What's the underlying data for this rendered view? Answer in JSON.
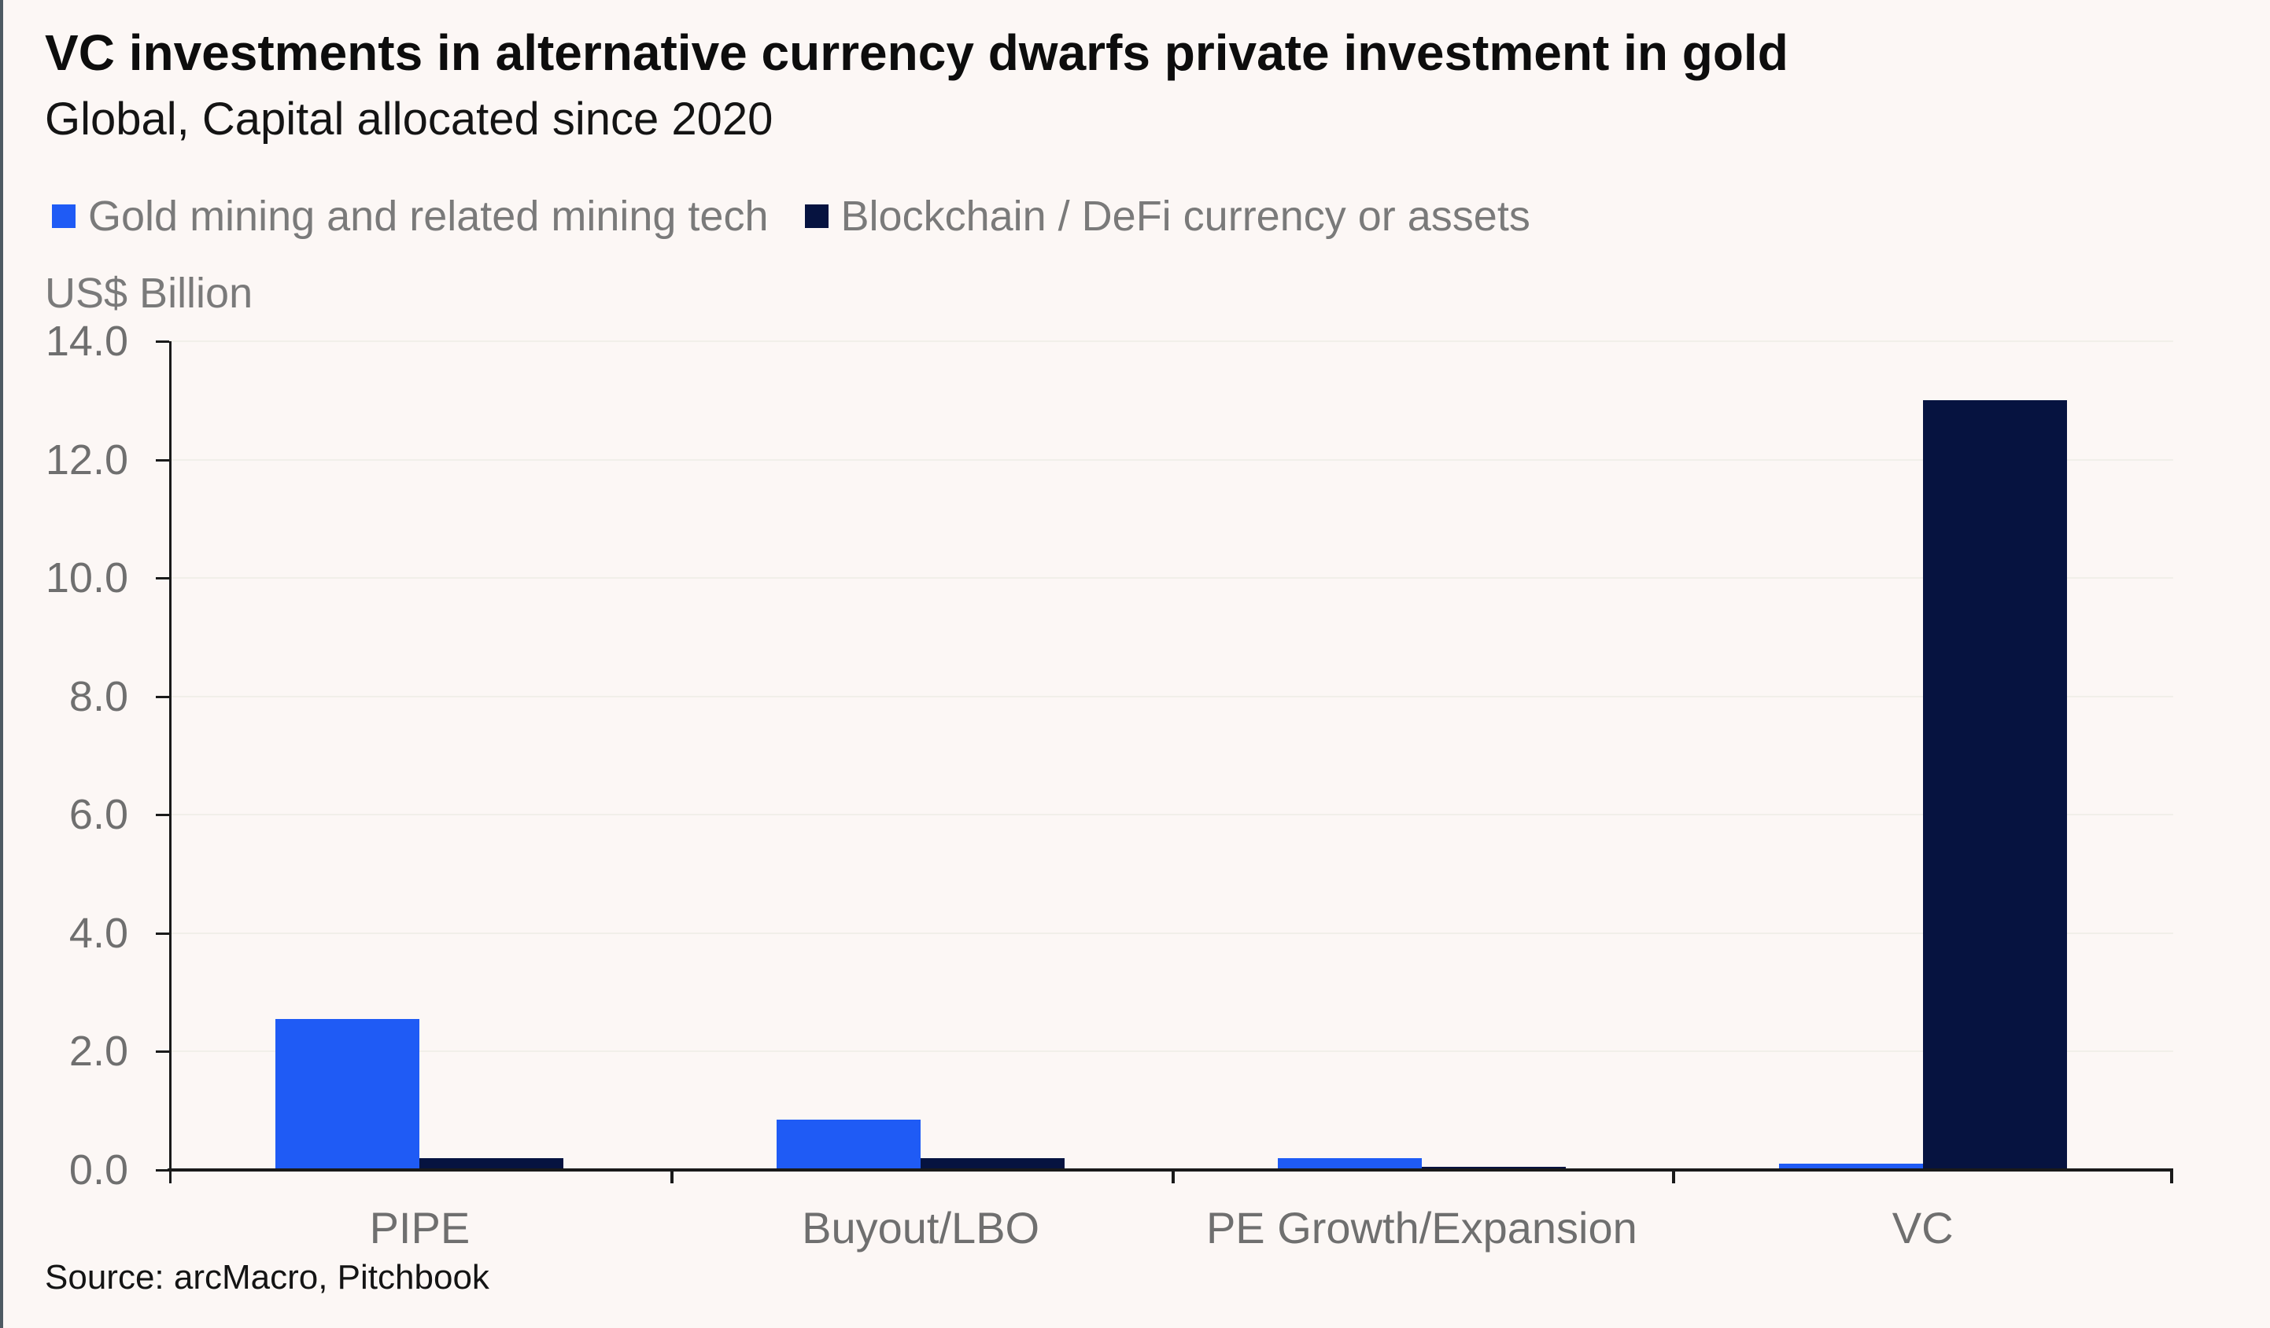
{
  "header": {
    "title": "VC investments in alternative currency dwarfs private investment in gold",
    "subtitle": "Global, Capital allocated since 2020"
  },
  "legend": {
    "items": [
      {
        "label": "Gold mining and related mining tech",
        "color": "#1F5BF5",
        "marker": "square"
      },
      {
        "label": "Blockchain / DeFi currency or assets",
        "color": "#061340",
        "marker": "square"
      }
    ]
  },
  "chart_data": {
    "type": "bar",
    "title": "VC investments in alternative currency dwarfs private investment in gold",
    "subtitle": "Global, Capital allocated since 2020",
    "categories": [
      "PIPE",
      "Buyout/LBO",
      "PE Growth/Expansion",
      "VC"
    ],
    "series": [
      {
        "name": "Gold mining and related mining tech",
        "color": "#1F5BF5",
        "values": [
          2.55,
          0.85,
          0.2,
          0.1
        ]
      },
      {
        "name": "Blockchain / DeFi currency or assets",
        "color": "#061340",
        "values": [
          0.2,
          0.2,
          0.05,
          13.0
        ]
      }
    ],
    "xlabel": "",
    "ylabel": "US$ Billion",
    "ylim": [
      0,
      14
    ],
    "ytick_step": 2,
    "ytick_labels": [
      "0.0",
      "2.0",
      "4.0",
      "6.0",
      "8.0",
      "10.0",
      "12.0",
      "14.0"
    ],
    "grid": "horizontal-light",
    "legend_position": "top-left"
  },
  "footer": {
    "source": "Source: arcMacro, Pitchbook"
  },
  "colors": {
    "background": "#FCF7F5",
    "series_gold_mining": "#1F5BF5",
    "series_blockchain": "#061340",
    "axis": "#1A1A1A",
    "muted_text": "#6F6F6F"
  }
}
